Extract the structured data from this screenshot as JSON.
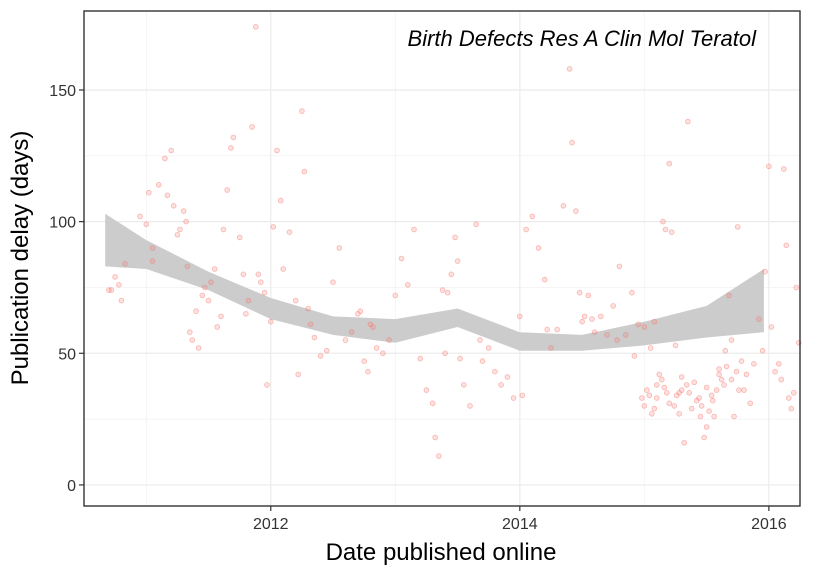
{
  "chart_data": {
    "type": "scatter",
    "title": "",
    "annotation": "Birth Defects Res A Clin Mol Teratol",
    "xlabel": "Date published online",
    "ylabel": "Publication delay (days)",
    "xlim": [
      2010.5,
      2016.25
    ],
    "ylim": [
      -8,
      180
    ],
    "xticks": [
      2012,
      2014,
      2016
    ],
    "yticks": [
      0,
      50,
      100,
      150
    ],
    "grid": true,
    "point_color": "#F8766D",
    "ribbon_color": "#cccccc",
    "smooth": {
      "x": [
        2010.67,
        2011.0,
        2011.5,
        2012.0,
        2012.5,
        2013.0,
        2013.5,
        2014.0,
        2014.5,
        2015.0,
        2015.5,
        2015.96
      ],
      "lower": [
        83,
        82,
        74,
        63,
        57,
        54,
        60,
        51,
        51,
        53,
        56,
        58
      ],
      "upper": [
        103,
        93,
        81,
        71,
        64,
        63,
        67,
        58,
        57,
        62,
        68,
        82
      ]
    },
    "points": [
      [
        2010.7,
        74
      ],
      [
        2010.72,
        74
      ],
      [
        2010.75,
        79
      ],
      [
        2010.78,
        76
      ],
      [
        2010.8,
        70
      ],
      [
        2010.83,
        84
      ],
      [
        2010.95,
        102
      ],
      [
        2011.0,
        99
      ],
      [
        2011.02,
        111
      ],
      [
        2011.05,
        85
      ],
      [
        2011.05,
        90
      ],
      [
        2011.1,
        114
      ],
      [
        2011.15,
        124
      ],
      [
        2011.17,
        110
      ],
      [
        2011.2,
        127
      ],
      [
        2011.22,
        106
      ],
      [
        2011.25,
        95
      ],
      [
        2011.27,
        97
      ],
      [
        2011.3,
        104
      ],
      [
        2011.32,
        100
      ],
      [
        2011.33,
        83
      ],
      [
        2011.35,
        58
      ],
      [
        2011.37,
        55
      ],
      [
        2011.4,
        66
      ],
      [
        2011.42,
        52
      ],
      [
        2011.45,
        72
      ],
      [
        2011.47,
        75
      ],
      [
        2011.5,
        70
      ],
      [
        2011.52,
        77
      ],
      [
        2011.55,
        82
      ],
      [
        2011.57,
        60
      ],
      [
        2011.6,
        64
      ],
      [
        2011.62,
        97
      ],
      [
        2011.65,
        112
      ],
      [
        2011.68,
        128
      ],
      [
        2011.7,
        132
      ],
      [
        2011.75,
        94
      ],
      [
        2011.78,
        80
      ],
      [
        2011.8,
        65
      ],
      [
        2011.82,
        70
      ],
      [
        2011.85,
        136
      ],
      [
        2011.88,
        174
      ],
      [
        2011.9,
        80
      ],
      [
        2011.92,
        77
      ],
      [
        2011.95,
        73
      ],
      [
        2011.97,
        38
      ],
      [
        2012.0,
        62
      ],
      [
        2012.02,
        98
      ],
      [
        2012.05,
        127
      ],
      [
        2012.08,
        108
      ],
      [
        2012.1,
        82
      ],
      [
        2012.15,
        96
      ],
      [
        2012.2,
        70
      ],
      [
        2012.22,
        42
      ],
      [
        2012.25,
        142
      ],
      [
        2012.27,
        119
      ],
      [
        2012.3,
        67
      ],
      [
        2012.32,
        61
      ],
      [
        2012.35,
        56
      ],
      [
        2012.4,
        49
      ],
      [
        2012.45,
        51
      ],
      [
        2012.5,
        77
      ],
      [
        2012.55,
        90
      ],
      [
        2012.6,
        55
      ],
      [
        2012.65,
        58
      ],
      [
        2012.7,
        65
      ],
      [
        2012.72,
        66
      ],
      [
        2012.75,
        47
      ],
      [
        2012.78,
        43
      ],
      [
        2012.8,
        61
      ],
      [
        2012.82,
        60
      ],
      [
        2012.85,
        52
      ],
      [
        2012.9,
        50
      ],
      [
        2012.95,
        55
      ],
      [
        2013.0,
        72
      ],
      [
        2013.05,
        86
      ],
      [
        2013.1,
        76
      ],
      [
        2013.15,
        97
      ],
      [
        2013.2,
        48
      ],
      [
        2013.25,
        36
      ],
      [
        2013.3,
        31
      ],
      [
        2013.32,
        18
      ],
      [
        2013.35,
        11
      ],
      [
        2013.38,
        74
      ],
      [
        2013.4,
        50
      ],
      [
        2013.42,
        73
      ],
      [
        2013.45,
        80
      ],
      [
        2013.48,
        94
      ],
      [
        2013.5,
        85
      ],
      [
        2013.52,
        48
      ],
      [
        2013.55,
        38
      ],
      [
        2013.6,
        30
      ],
      [
        2013.65,
        99
      ],
      [
        2013.68,
        55
      ],
      [
        2013.7,
        47
      ],
      [
        2013.75,
        52
      ],
      [
        2013.8,
        43
      ],
      [
        2013.85,
        38
      ],
      [
        2013.9,
        41
      ],
      [
        2013.95,
        33
      ],
      [
        2014.0,
        64
      ],
      [
        2014.02,
        34
      ],
      [
        2014.05,
        97
      ],
      [
        2014.1,
        102
      ],
      [
        2014.15,
        90
      ],
      [
        2014.2,
        78
      ],
      [
        2014.22,
        59
      ],
      [
        2014.25,
        52
      ],
      [
        2014.3,
        59
      ],
      [
        2014.35,
        106
      ],
      [
        2014.4,
        158
      ],
      [
        2014.42,
        130
      ],
      [
        2014.45,
        104
      ],
      [
        2014.48,
        73
      ],
      [
        2014.5,
        62
      ],
      [
        2014.52,
        64
      ],
      [
        2014.55,
        72
      ],
      [
        2014.58,
        63
      ],
      [
        2014.6,
        58
      ],
      [
        2014.65,
        64
      ],
      [
        2014.7,
        57
      ],
      [
        2014.75,
        68
      ],
      [
        2014.78,
        55
      ],
      [
        2014.8,
        83
      ],
      [
        2014.85,
        57
      ],
      [
        2014.9,
        73
      ],
      [
        2014.92,
        49
      ],
      [
        2014.95,
        61
      ],
      [
        2015.0,
        60
      ],
      [
        2015.05,
        52
      ],
      [
        2015.08,
        62
      ],
      [
        2015.1,
        38
      ],
      [
        2015.12,
        42
      ],
      [
        2015.15,
        100
      ],
      [
        2015.17,
        97
      ],
      [
        2015.2,
        122
      ],
      [
        2015.22,
        96
      ],
      [
        2015.25,
        53
      ],
      [
        2015.28,
        35
      ],
      [
        2015.3,
        41
      ],
      [
        2015.32,
        16
      ],
      [
        2015.35,
        138
      ],
      [
        2015.38,
        29
      ],
      [
        2015.42,
        32
      ],
      [
        2015.45,
        26
      ],
      [
        2015.48,
        18
      ],
      [
        2015.5,
        22
      ],
      [
        2015.52,
        28
      ],
      [
        2015.55,
        32
      ],
      [
        2015.58,
        36
      ],
      [
        2015.6,
        44
      ],
      [
        2015.62,
        40
      ],
      [
        2015.65,
        51
      ],
      [
        2015.68,
        72
      ],
      [
        2015.7,
        55
      ],
      [
        2015.72,
        26
      ],
      [
        2015.75,
        98
      ],
      [
        2015.78,
        47
      ],
      [
        2015.8,
        36
      ],
      [
        2015.82,
        42
      ],
      [
        2015.85,
        31
      ],
      [
        2015.88,
        46
      ],
      [
        2015.92,
        63
      ],
      [
        2015.95,
        51
      ],
      [
        2015.97,
        81
      ],
      [
        2016.0,
        121
      ],
      [
        2016.02,
        60
      ],
      [
        2016.05,
        43
      ],
      [
        2016.08,
        46
      ],
      [
        2016.1,
        40
      ],
      [
        2016.12,
        120
      ],
      [
        2016.14,
        91
      ],
      [
        2016.16,
        33
      ],
      [
        2016.18,
        29
      ],
      [
        2016.2,
        35
      ],
      [
        2016.22,
        75
      ],
      [
        2016.24,
        54
      ],
      [
        2014.98,
        33
      ],
      [
        2015.0,
        30
      ],
      [
        2015.02,
        36
      ],
      [
        2015.04,
        34
      ],
      [
        2015.06,
        27
      ],
      [
        2015.08,
        29
      ],
      [
        2015.1,
        33
      ],
      [
        2015.14,
        40
      ],
      [
        2015.16,
        37
      ],
      [
        2015.18,
        35
      ],
      [
        2015.2,
        31
      ],
      [
        2015.24,
        30
      ],
      [
        2015.26,
        34
      ],
      [
        2015.28,
        27
      ],
      [
        2015.3,
        36
      ],
      [
        2015.34,
        38
      ],
      [
        2015.36,
        35
      ],
      [
        2015.4,
        39
      ],
      [
        2015.44,
        33
      ],
      [
        2015.46,
        30
      ],
      [
        2015.5,
        37
      ],
      [
        2015.54,
        34
      ],
      [
        2015.56,
        26
      ],
      [
        2015.6,
        42
      ],
      [
        2015.64,
        38
      ],
      [
        2015.66,
        45
      ],
      [
        2015.7,
        40
      ],
      [
        2015.74,
        43
      ],
      [
        2015.76,
        36
      ]
    ]
  }
}
